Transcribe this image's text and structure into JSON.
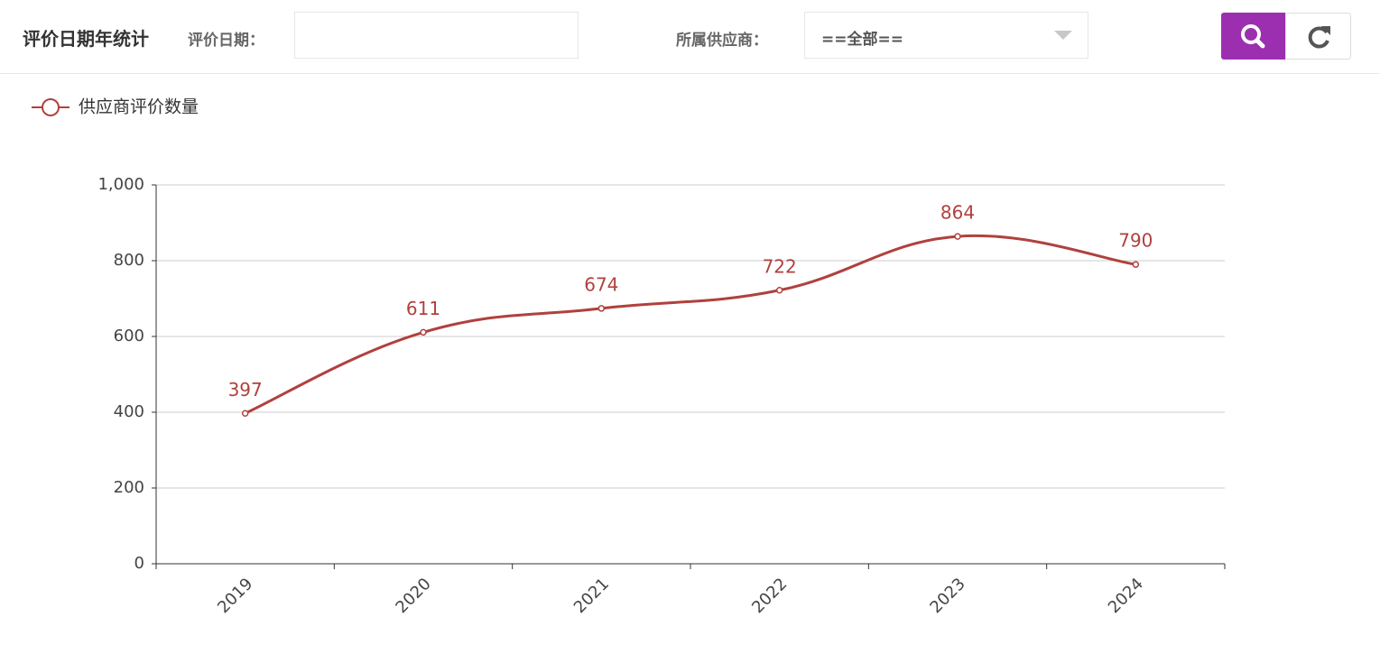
{
  "header": {
    "title": "评价日期年统计",
    "date_label": "评价日期：",
    "supplier_label": "所属供应商：",
    "supplier_value": "==全部=="
  },
  "chart_data": {
    "type": "line",
    "categories": [
      "2019",
      "2020",
      "2021",
      "2022",
      "2023",
      "2024"
    ],
    "series": [
      {
        "name": "供应商评价数量",
        "color": "#b0413e",
        "values": [
          397,
          611,
          674,
          722,
          864,
          790
        ]
      }
    ],
    "ylim": [
      0,
      1000
    ],
    "yticks": [
      0,
      200,
      400,
      600,
      800,
      {
        "value": 1000,
        "label": "1,000"
      }
    ],
    "grid": true,
    "smooth": true,
    "legend": "top-left"
  }
}
